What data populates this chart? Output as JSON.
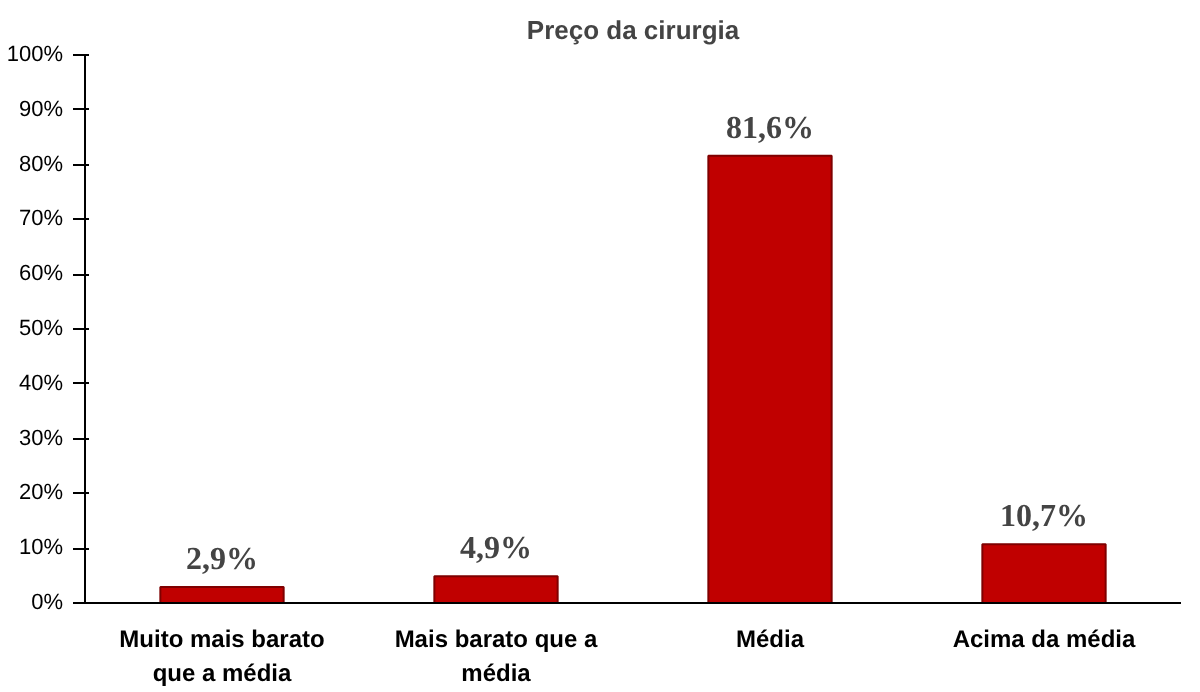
{
  "chart_data": {
    "type": "bar",
    "title": "Preço da cirurgia",
    "categories": [
      "Muito mais barato que a média",
      "Mais barato que a média",
      "Média",
      "Acima da média"
    ],
    "values": [
      2.9,
      4.9,
      81.6,
      10.7
    ],
    "value_labels": [
      "2,9%",
      "4,9%",
      "81,6%",
      "10,7%"
    ],
    "color": "#c00000",
    "ylim": [
      0,
      100
    ],
    "yticks": [
      {
        "value": 0,
        "label": "0%"
      },
      {
        "value": 10,
        "label": "10%"
      },
      {
        "value": 20,
        "label": "20%"
      },
      {
        "value": 30,
        "label": "30%"
      },
      {
        "value": 40,
        "label": "40%"
      },
      {
        "value": 50,
        "label": "50%"
      },
      {
        "value": 60,
        "label": "60%"
      },
      {
        "value": 70,
        "label": "70%"
      },
      {
        "value": 80,
        "label": "80%"
      },
      {
        "value": 90,
        "label": "90%"
      },
      {
        "value": 100,
        "label": "100%"
      }
    ],
    "grid": false
  }
}
